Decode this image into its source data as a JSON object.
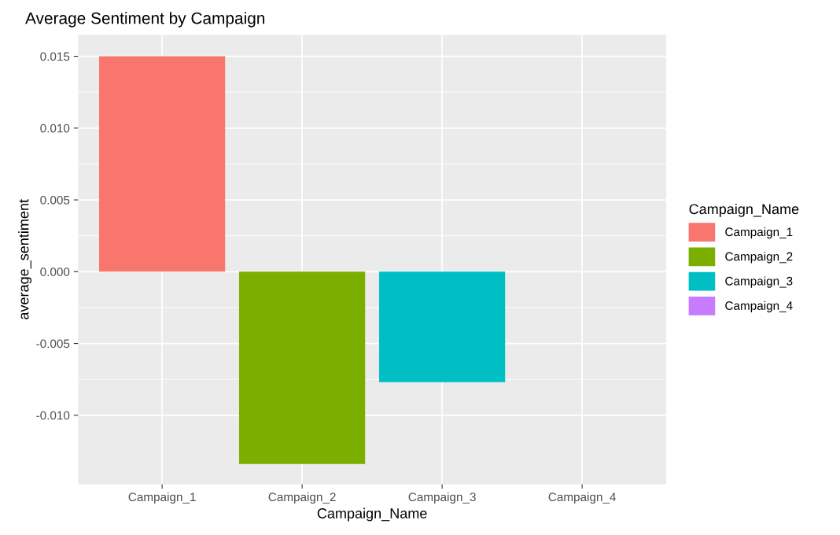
{
  "chart_data": {
    "type": "bar",
    "title": "Average Sentiment by Campaign",
    "xlabel": "Campaign_Name",
    "ylabel": "average_sentiment",
    "legend_title": "Campaign_Name",
    "categories": [
      "Campaign_1",
      "Campaign_2",
      "Campaign_3",
      "Campaign_4"
    ],
    "series": [
      {
        "name": "Campaign_1",
        "color": "#f8766d",
        "values": [
          0.015,
          null,
          null,
          null
        ]
      },
      {
        "name": "Campaign_2",
        "color": "#7cae00",
        "values": [
          null,
          -0.0134,
          null,
          null
        ]
      },
      {
        "name": "Campaign_3",
        "color": "#00bfc4",
        "values": [
          null,
          null,
          -0.0077,
          null
        ]
      },
      {
        "name": "Campaign_4",
        "color": "#c77cff",
        "values": [
          null,
          null,
          null,
          0
        ]
      }
    ],
    "stacked": true,
    "ylim": [
      -0.0148,
      0.0165
    ],
    "yticks": [
      {
        "value": -0.01,
        "label": "-0.010"
      },
      {
        "value": -0.005,
        "label": "-0.005"
      },
      {
        "value": 0,
        "label": "0.000"
      },
      {
        "value": 0.005,
        "label": "0.005"
      },
      {
        "value": 0.01,
        "label": "0.010"
      },
      {
        "value": 0.015,
        "label": "0.015"
      }
    ],
    "grid": true,
    "legend": "right"
  }
}
